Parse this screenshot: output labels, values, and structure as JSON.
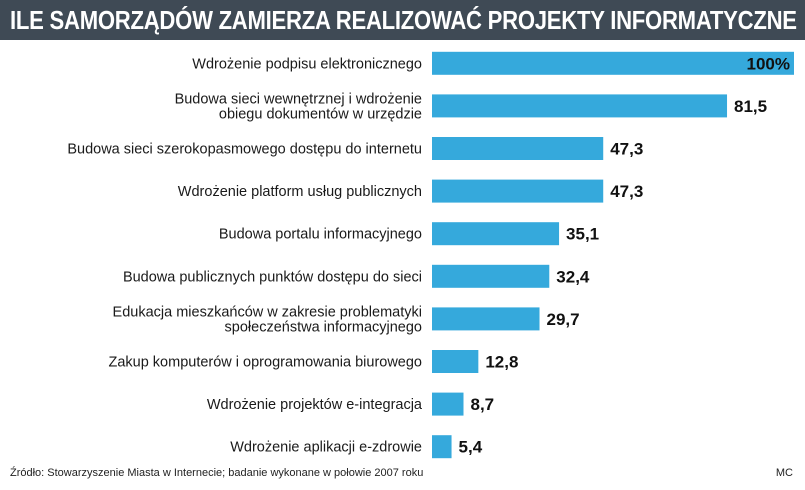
{
  "chart_data": {
    "type": "bar",
    "orientation": "horizontal",
    "title": "ILE SAMORZĄDÓW ZAMIERZA REALIZOWAĆ PROJEKTY INFORMATYCZNE",
    "categories": [
      [
        "Wdrożenie podpisu elektronicznego"
      ],
      [
        "Budowa sieci wewnętrznej i wdrożenie",
        "obiegu dokumentów w urzędzie"
      ],
      [
        "Budowa sieci szerokopasmowego dostępu do internetu"
      ],
      [
        "Wdrożenie platform usług publicznych"
      ],
      [
        "Budowa portalu informacyjnego"
      ],
      [
        "Budowa publicznych punktów dostępu do sieci"
      ],
      [
        "Edukacja mieszkańców w zakresie problematyki",
        "społeczeństwa informacyjnego"
      ],
      [
        "Zakup komputerów i oprogramowania biurowego"
      ],
      [
        "Wdrożenie projektów e-integracja"
      ],
      [
        "Wdrożenie aplikacji e-zdrowie"
      ]
    ],
    "values": [
      100,
      81.5,
      47.3,
      47.3,
      35.1,
      32.4,
      29.7,
      12.8,
      8.7,
      5.4
    ],
    "value_labels": [
      "100%",
      "81,5",
      "47,3",
      "47,3",
      "35,1",
      "32,4",
      "29,7",
      "12,8",
      "8,7",
      "5,4"
    ],
    "xlim": [
      0,
      100
    ],
    "bar_color": "#35a9dc",
    "grid": false
  },
  "footer": {
    "source": "Źródło: Stowarzyszenie Miasta w Internecie; badanie wykonane w połowie 2007 roku",
    "credit": "MC"
  },
  "colors": {
    "title_bg": "#3f4a55",
    "title_text": "#ffffff"
  }
}
